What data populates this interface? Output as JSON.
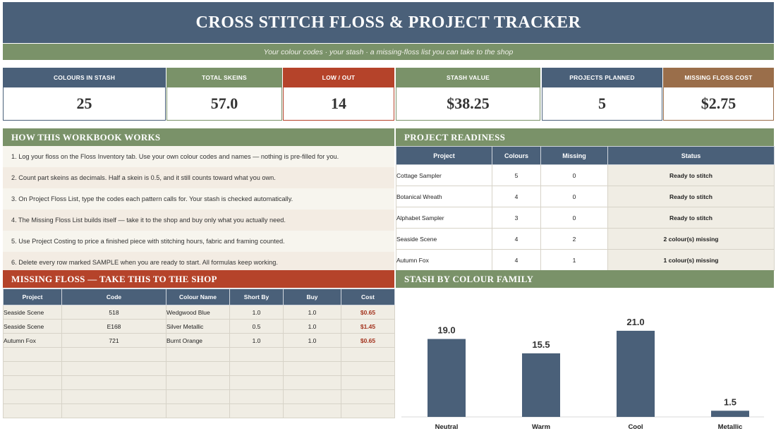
{
  "header": {
    "title": "CROSS STITCH FLOSS & PROJECT TRACKER",
    "subtitle": "Your colour codes · your stash · a missing-floss list you can take to the shop"
  },
  "kpis": [
    {
      "label": "COLOURS IN STASH",
      "value": "25",
      "color": "#4a6079"
    },
    {
      "label": "TOTAL SKEINS",
      "value": "57.0",
      "color": "#7a9269"
    },
    {
      "label": "LOW / OUT",
      "value": "14",
      "color": "#b5432a"
    },
    {
      "label": "STASH VALUE",
      "value": "$38.25",
      "color": "#7a9269"
    },
    {
      "label": "PROJECTS PLANNED",
      "value": "5",
      "color": "#4a6079"
    },
    {
      "label": "MISSING FLOSS COST",
      "value": "$2.75",
      "color": "#9a6e4a"
    }
  ],
  "how": {
    "heading": "HOW THIS WORKBOOK WORKS",
    "steps": [
      "1.  Log your floss on the Floss Inventory tab. Use your own colour codes and names — nothing is pre-filled for you.",
      "2.  Count part skeins as decimals. Half a skein is 0.5, and it still counts toward what you own.",
      "3.  On Project Floss List, type the codes each pattern calls for. Your stash is checked automatically.",
      "4.  The Missing Floss List builds itself — take it to the shop and buy only what you actually need.",
      "5.  Use Project Costing to price a finished piece with stitching hours, fabric and framing counted.",
      "6.  Delete every row marked SAMPLE when you are ready to start. All formulas keep working."
    ]
  },
  "readiness": {
    "heading": "PROJECT READINESS",
    "columns": [
      "Project",
      "Colours",
      "Missing",
      "Status"
    ],
    "rows": [
      [
        "Cottage Sampler",
        "5",
        "0",
        "Ready to stitch"
      ],
      [
        "Botanical Wreath",
        "4",
        "0",
        "Ready to stitch"
      ],
      [
        "Alphabet Sampler",
        "3",
        "0",
        "Ready to stitch"
      ],
      [
        "Seaside Scene",
        "4",
        "2",
        "2 colour(s) missing"
      ],
      [
        "Autumn Fox",
        "4",
        "1",
        "1 colour(s) missing"
      ]
    ]
  },
  "missing": {
    "heading": "MISSING FLOSS — TAKE THIS TO THE SHOP",
    "columns": [
      "Project",
      "Code",
      "Colour Name",
      "Short By",
      "Buy",
      "Cost"
    ],
    "rows": [
      [
        "Seaside Scene",
        "518",
        "Wedgwood Blue",
        "1.0",
        "1.0",
        "$0.65"
      ],
      [
        "Seaside Scene",
        "E168",
        "Silver Metallic",
        "0.5",
        "1.0",
        "$1.45"
      ],
      [
        "Autumn Fox",
        "721",
        "Burnt Orange",
        "1.0",
        "1.0",
        "$0.65"
      ],
      [
        "",
        "",
        "",
        "",
        "",
        ""
      ],
      [
        "",
        "",
        "",
        "",
        "",
        ""
      ],
      [
        "",
        "",
        "",
        "",
        "",
        ""
      ],
      [
        "",
        "",
        "",
        "",
        "",
        ""
      ],
      [
        "",
        "",
        "",
        "",
        "",
        ""
      ]
    ]
  },
  "stash_chart": {
    "heading": "STASH BY COLOUR FAMILY"
  },
  "chart_data": {
    "type": "bar",
    "categories": [
      "Neutral",
      "Warm",
      "Cool",
      "Metallic"
    ],
    "values": [
      19.0,
      15.5,
      21.0,
      1.5
    ],
    "data_labels": [
      "19.0",
      "15.5",
      "21.0",
      "1.5"
    ],
    "title": "",
    "xlabel": "",
    "ylabel": "",
    "ylim": [
      0,
      24
    ],
    "bar_color": "#4a6079",
    "grid": false
  }
}
